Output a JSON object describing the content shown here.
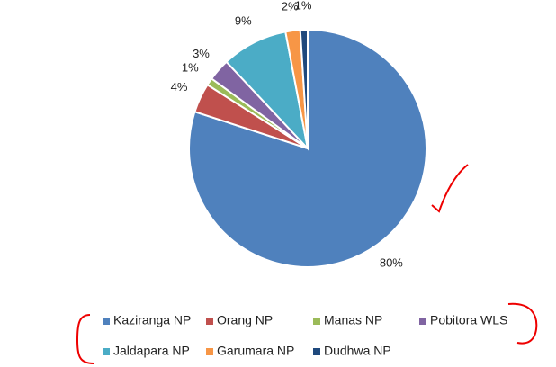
{
  "chart_data": {
    "type": "pie",
    "categories": [
      "Kaziranga NP",
      "Orang NP",
      "Manas NP",
      "Pobitora WLS",
      "Jaldapara NP",
      "Garumara NP",
      "Dudhwa NP"
    ],
    "values": [
      80,
      4,
      1,
      3,
      9,
      2,
      1
    ],
    "value_labels": [
      "80%",
      "4%",
      "1%",
      "3%",
      "9%",
      "2%",
      "1%"
    ],
    "colors": [
      "#4f81bd",
      "#c0504d",
      "#9bbb59",
      "#8064a2",
      "#4bacc6",
      "#f79646",
      "#1f497d"
    ],
    "legend": "bottom"
  }
}
